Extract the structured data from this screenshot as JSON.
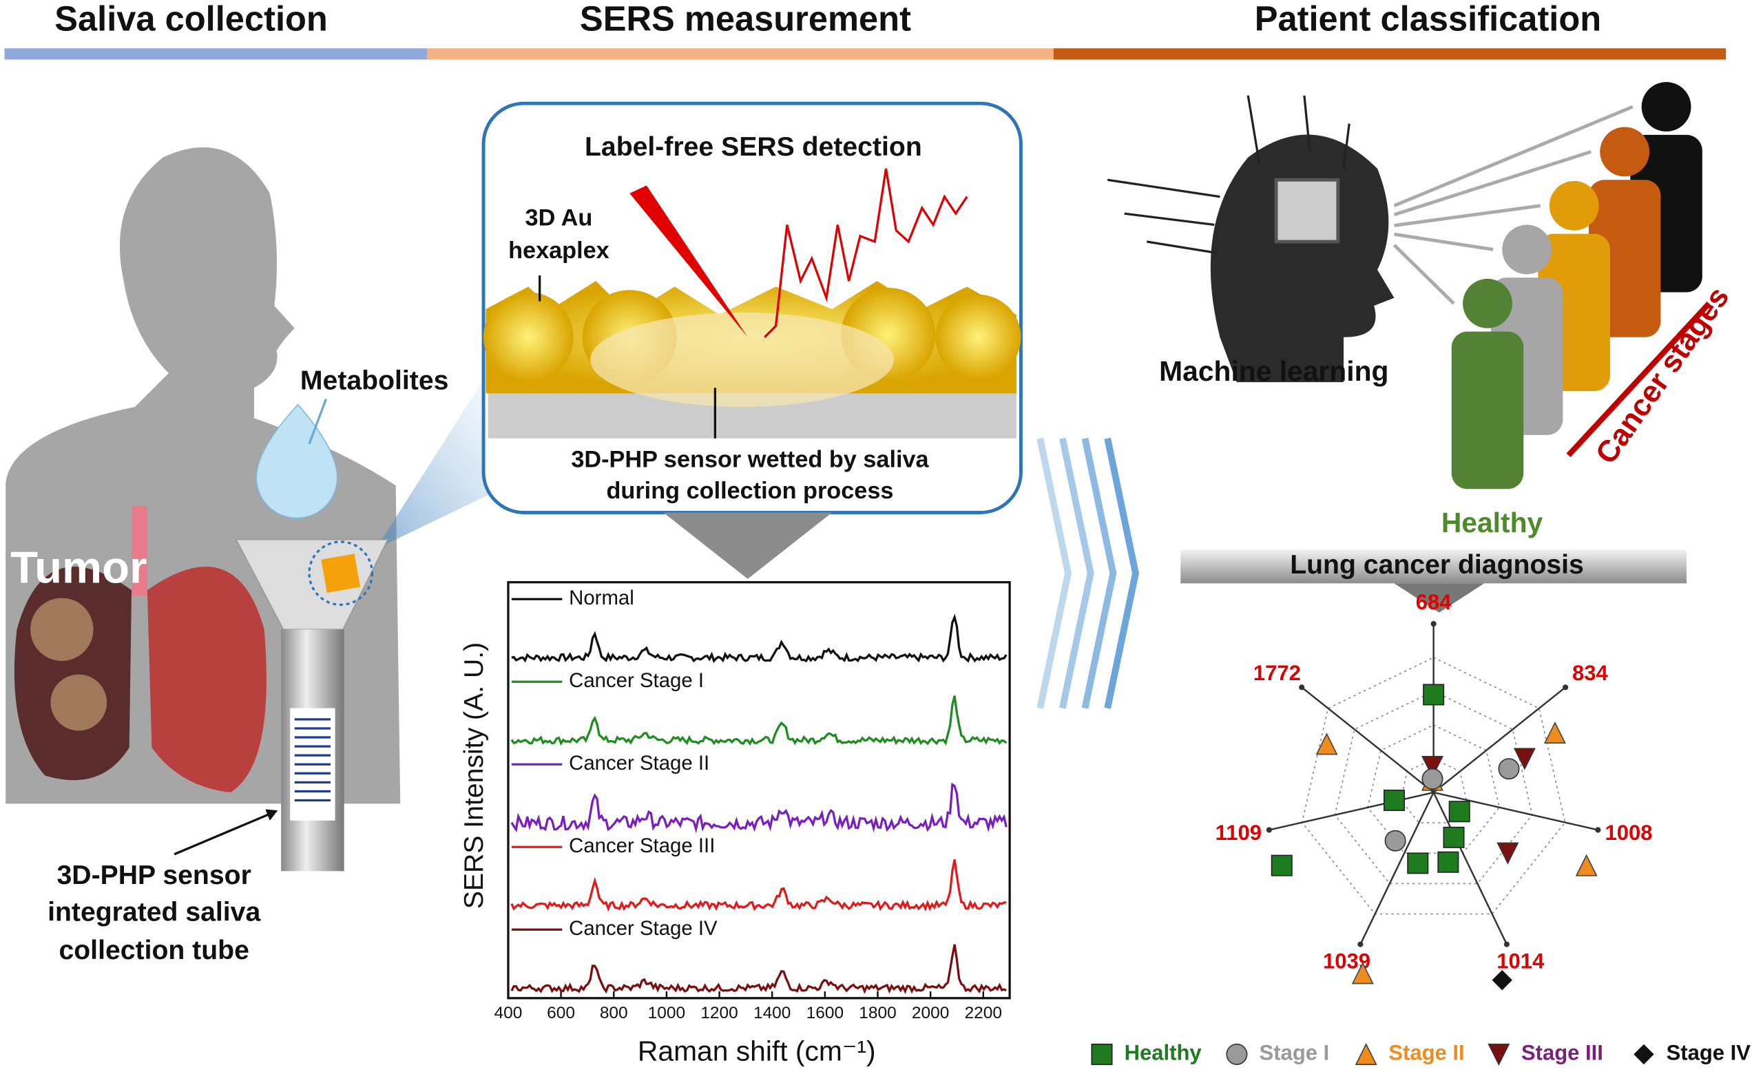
{
  "headers": [
    "Saliva collection",
    "SERS measurement",
    "Patient classification"
  ],
  "collection": {
    "tumor": "Tumor",
    "metabolites": "Metabolites",
    "tube_label": [
      "3D-PHP sensor",
      "integrated saliva",
      "collection tube"
    ]
  },
  "detection": {
    "title": "Label-free SERS detection",
    "hexaplex": [
      "3D Au",
      "hexaplex"
    ],
    "sensor": [
      "3D-PHP sensor wetted by saliva",
      "during collection process"
    ]
  },
  "sers_plot": {
    "y_label": "SERS Intensity (A. U.)",
    "x_label": "Raman shift (cm⁻¹)",
    "xlim": [
      400,
      2300
    ],
    "xticks": [
      400,
      600,
      800,
      1000,
      1200,
      1400,
      1600,
      1800,
      2000,
      2200
    ],
    "series": [
      {
        "name": "Normal",
        "color": "#111111"
      },
      {
        "name": "Cancer Stage I",
        "color": "#1e8c1e"
      },
      {
        "name": "Cancer Stage II",
        "color": "#7a1fbf"
      },
      {
        "name": "Cancer Stage III",
        "color": "#e31a1a"
      },
      {
        "name": "Cancer Stage IV",
        "color": "#7a0e0e"
      }
    ]
  },
  "classification": {
    "machine_learning": "Machine learning",
    "healthy": "Healthy",
    "cancer_stages": "Cancer stages",
    "diagnosis": "Lung cancer diagnosis",
    "radar_axes": [
      "684",
      "834",
      "1008",
      "1014",
      "1039",
      "1109",
      "1772"
    ],
    "legend": [
      {
        "name": "Healthy",
        "color": "#1e7b1e"
      },
      {
        "name": "Stage I",
        "color": "#9a9a9a"
      },
      {
        "name": "Stage II",
        "color": "#f08c1e"
      },
      {
        "name": "Stage III",
        "color": "#7a1f7a"
      },
      {
        "name": "Stage IV",
        "color": "#111111"
      }
    ]
  }
}
